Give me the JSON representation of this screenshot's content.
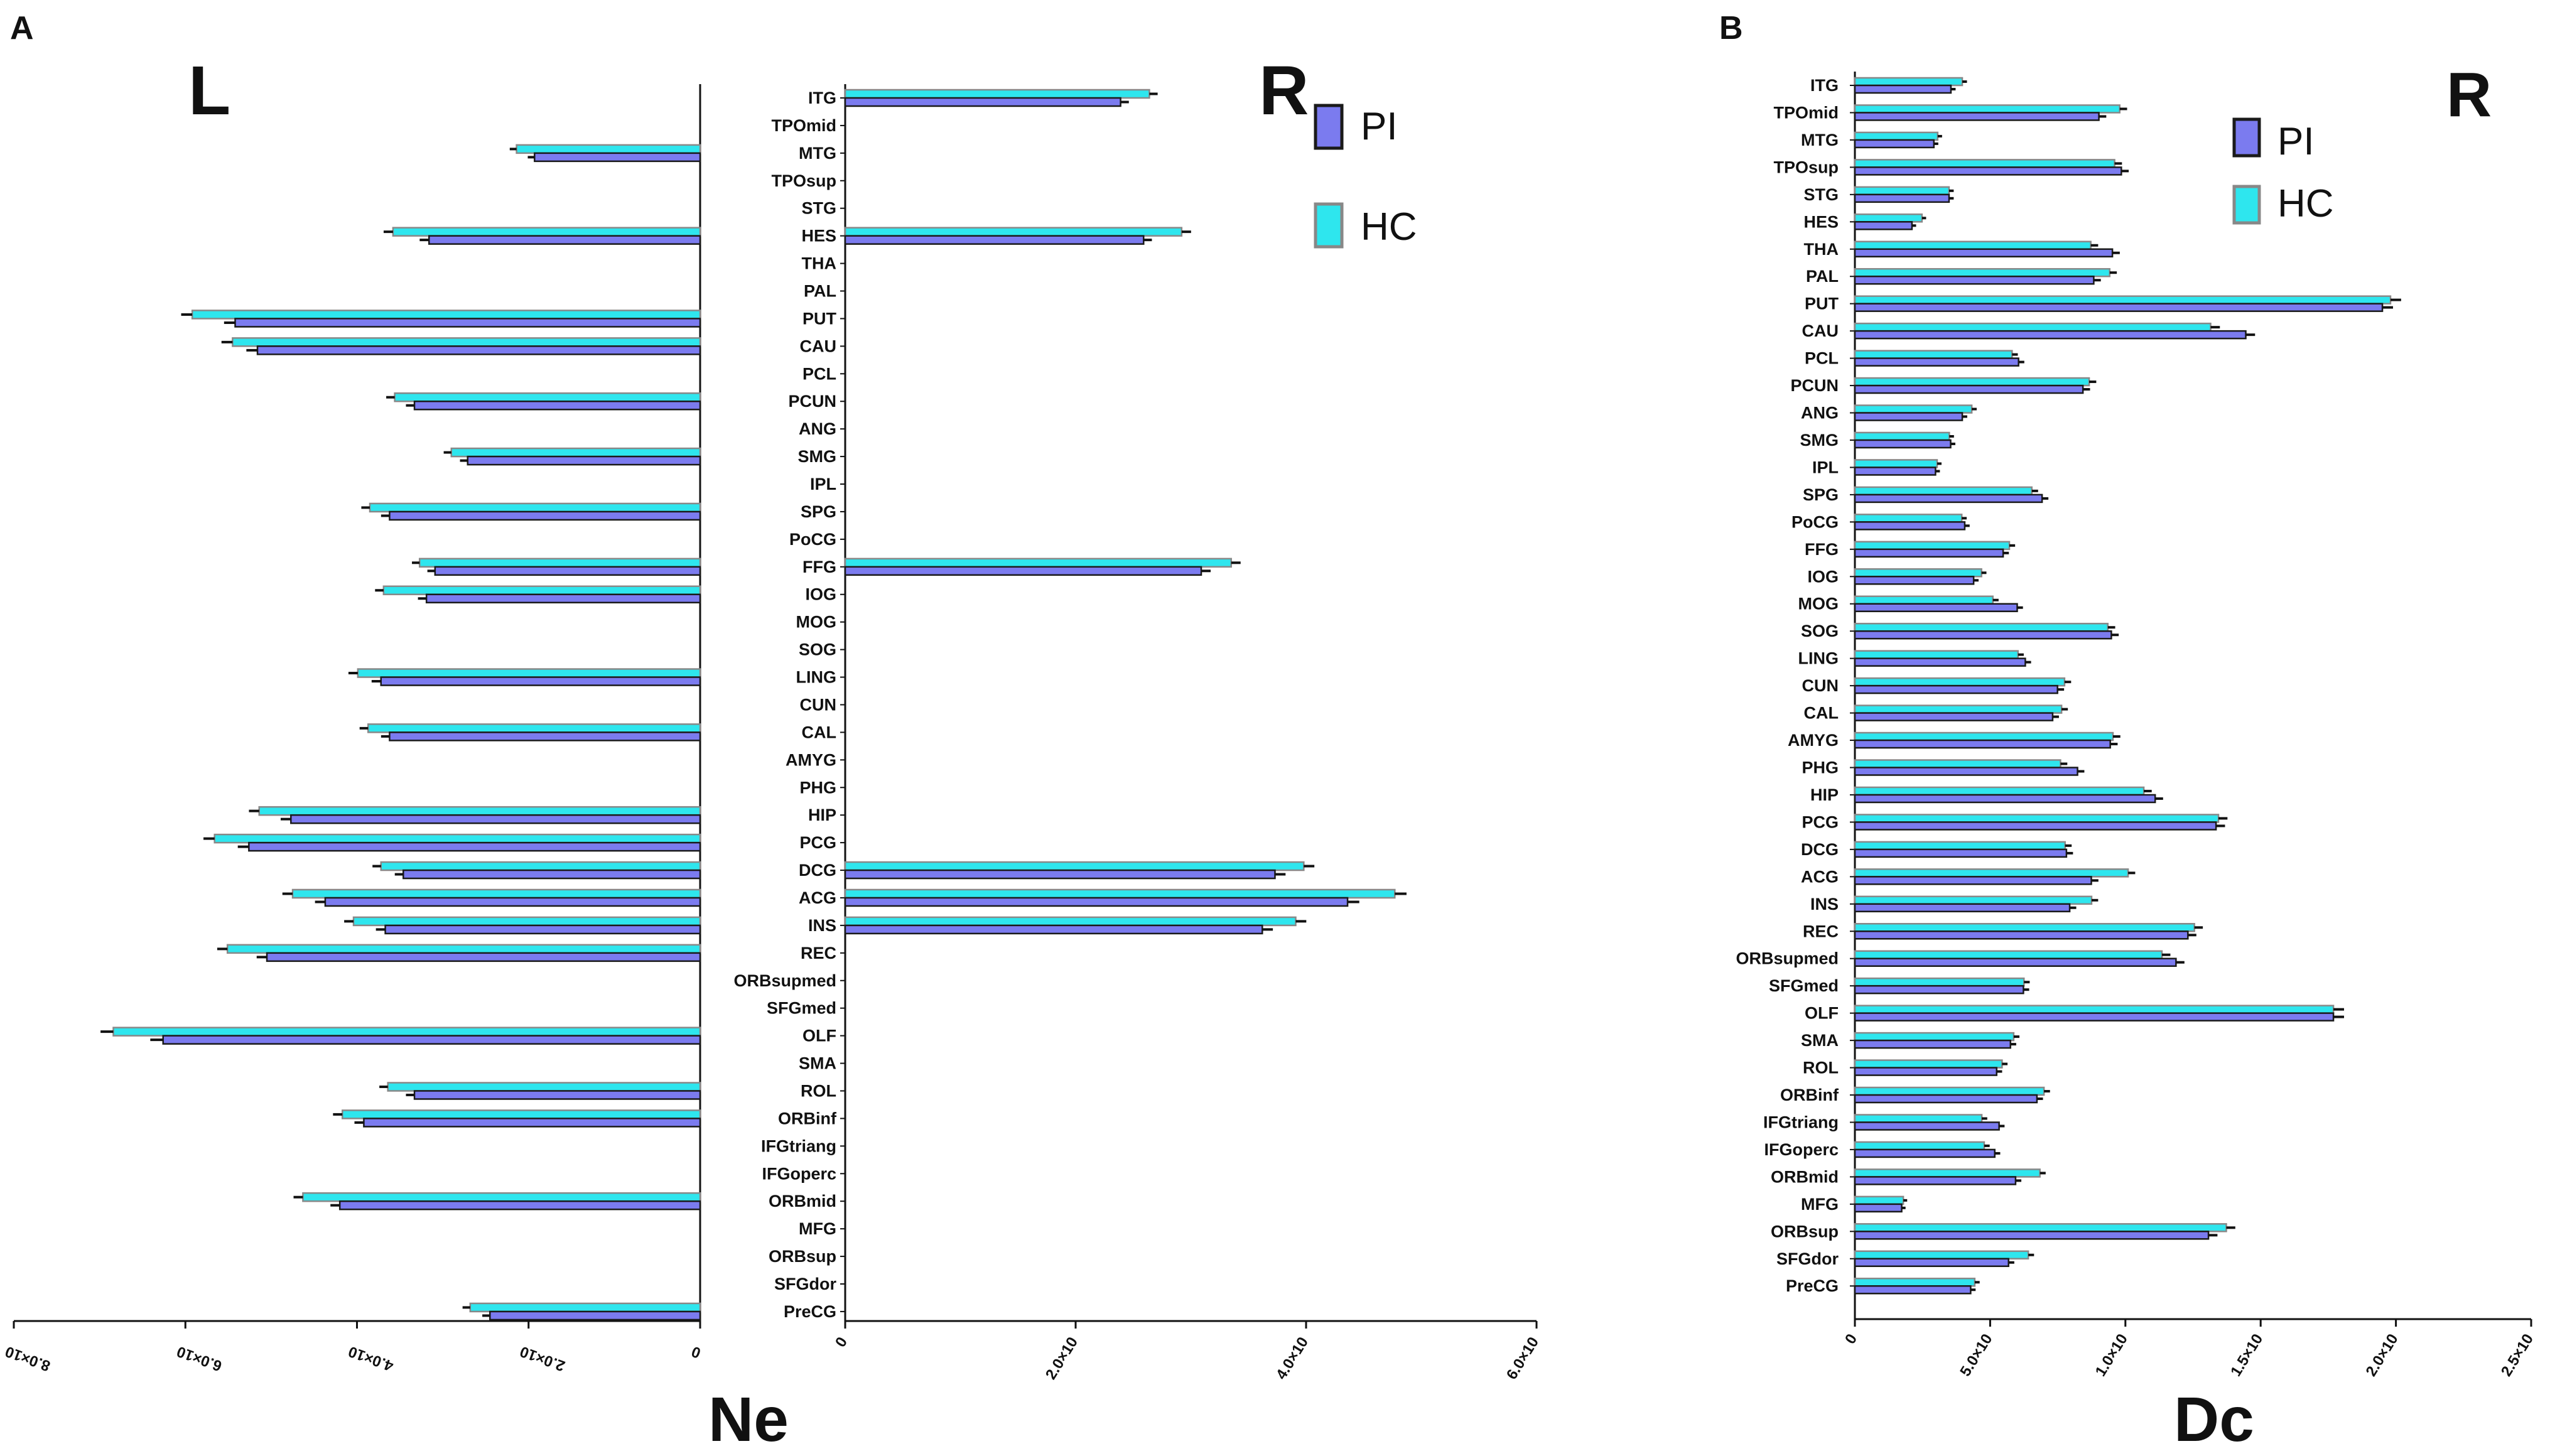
{
  "colors": {
    "pi": "#7b7bef",
    "hc": "#2ee6ee",
    "outline": "#1a1a1a"
  },
  "panels": {
    "a": {
      "letter": "A",
      "side_left": "L",
      "side_right": "R",
      "metric": "Ne"
    },
    "b": {
      "letter": "B",
      "side_right": "R",
      "metric": "Dc"
    }
  },
  "legend": {
    "pi": "PI",
    "hc": "HC"
  },
  "chart_data": [
    {
      "id": "ne_left",
      "type": "bar",
      "orientation": "horizontal",
      "direction": "right-to-left",
      "title": "L",
      "xlabel": "Ne",
      "xlim": [
        0,
        0.008
      ],
      "xticks": [
        "0",
        "2.0×10",
        "4.0×10",
        "6.0×10",
        "8.0×10"
      ],
      "categories": [
        "ITG",
        "TPOmid",
        "MTG",
        "TPOsup",
        "STG",
        "HES",
        "THA",
        "PAL",
        "PUT",
        "CAU",
        "PCL",
        "PCUN",
        "ANG",
        "SMG",
        "IPL",
        "SPG",
        "PoCG",
        "FFG",
        "IOG",
        "MOG",
        "SOG",
        "LING",
        "CUN",
        "CAL",
        "AMYG",
        "PHG",
        "HIP",
        "PCG",
        "DCG",
        "ACG",
        "INS",
        "REC",
        "ORBsupmed",
        "SFGmed",
        "OLF",
        "SMA",
        "ROL",
        "ORBinf",
        "IFGtriang",
        "IFGoperc",
        "ORBmid",
        "MFG",
        "ORBsup",
        "SFGdor",
        "PreCG"
      ],
      "series": [
        {
          "name": "PI",
          "values": [
            0,
            0,
            0.00193,
            0,
            0,
            0.00316,
            0,
            0,
            0.00542,
            0.00516,
            0,
            0.00333,
            0,
            0.00271,
            0,
            0.00362,
            0,
            0.00309,
            0.00319,
            0,
            0,
            0.00372,
            0,
            0.00362,
            0,
            0,
            0.00477,
            0.00526,
            0.00346,
            0.00437,
            0.00367,
            0.00505,
            0,
            0,
            0.00626,
            0,
            0.00333,
            0.00392,
            0,
            0,
            0.0042,
            0,
            0,
            0,
            0.00245
          ],
          "errors": [
            0,
            0,
            5e-05,
            0,
            0,
            8e-05,
            0,
            0,
            0.0001,
            0.0001,
            0,
            7e-05,
            0,
            6e-05,
            0,
            7e-05,
            0,
            6e-05,
            7e-05,
            0,
            0,
            8e-05,
            0,
            7e-05,
            0,
            0,
            9e-05,
            0.0001,
            7e-05,
            9e-05,
            8e-05,
            9e-05,
            0,
            0,
            0.00012,
            0,
            7e-05,
            8e-05,
            0,
            0,
            8e-05,
            0,
            0,
            0,
            6e-05
          ]
        },
        {
          "name": "HC",
          "values": [
            0,
            0,
            0.00214,
            0,
            0,
            0.00358,
            0,
            0,
            0.00592,
            0.00545,
            0,
            0.00356,
            0,
            0.0029,
            0,
            0.00385,
            0,
            0.00327,
            0.00369,
            0,
            0,
            0.00399,
            0,
            0.00387,
            0,
            0,
            0.00514,
            0.00566,
            0.00372,
            0.00475,
            0.00404,
            0.00551,
            0,
            0,
            0.00684,
            0,
            0.00364,
            0.00417,
            0,
            0,
            0.00463,
            0,
            0,
            0,
            0.00268
          ],
          "errors": [
            0,
            0,
            5e-05,
            0,
            0,
            8e-05,
            0,
            0,
            0.0001,
            0.0001,
            0,
            7e-05,
            0,
            6e-05,
            0,
            7e-05,
            0,
            6e-05,
            7e-05,
            0,
            0,
            8e-05,
            0,
            7e-05,
            0,
            0,
            9e-05,
            0.0001,
            7e-05,
            9e-05,
            8e-05,
            9e-05,
            0,
            0,
            0.00012,
            0,
            7e-05,
            8e-05,
            0,
            0,
            8e-05,
            0,
            0,
            0,
            6e-05
          ]
        }
      ]
    },
    {
      "id": "ne_right",
      "type": "bar",
      "orientation": "horizontal",
      "title": "R",
      "xlabel": "Ne",
      "xlim": [
        0,
        0.006
      ],
      "xticks": [
        "0",
        "2.0×10",
        "4.0×10",
        "6.0×10"
      ],
      "categories": [
        "ITG",
        "TPOmid",
        "MTG",
        "TPOsup",
        "STG",
        "HES",
        "THA",
        "PAL",
        "PUT",
        "CAU",
        "PCL",
        "PCUN",
        "ANG",
        "SMG",
        "IPL",
        "SPG",
        "PoCG",
        "FFG",
        "IOG",
        "MOG",
        "SOG",
        "LING",
        "CUN",
        "CAL",
        "AMYG",
        "PHG",
        "HIP",
        "PCG",
        "DCG",
        "ACG",
        "INS",
        "REC",
        "ORBsupmed",
        "SFGmed",
        "OLF",
        "SMA",
        "ROL",
        "ORBinf",
        "IFGtriang",
        "IFGoperc",
        "ORBmid",
        "MFG",
        "ORBsup",
        "SFGdor",
        "PreCG"
      ],
      "series": [
        {
          "name": "PI",
          "values": [
            0.00239,
            0,
            0,
            0,
            0,
            0.00259,
            0,
            0,
            0,
            0,
            0,
            0,
            0,
            0,
            0,
            0,
            0,
            0.00309,
            0,
            0,
            0,
            0,
            0,
            0,
            0,
            0,
            0,
            0,
            0.00373,
            0.00436,
            0.00362,
            0,
            0,
            0,
            0,
            0,
            0,
            0,
            0,
            0,
            0,
            0,
            0,
            0,
            0
          ],
          "errors": [
            5e-05,
            0,
            0,
            0,
            0,
            5e-05,
            0,
            0,
            0,
            0,
            0,
            0,
            0,
            0,
            0,
            0,
            0,
            6e-05,
            0,
            0,
            0,
            0,
            0,
            0,
            0,
            0,
            0,
            0,
            7e-05,
            8e-05,
            7e-05,
            0,
            0,
            0,
            0,
            0,
            0,
            0,
            0,
            0,
            0,
            0,
            0,
            0,
            0
          ]
        },
        {
          "name": "HC",
          "values": [
            0.00264,
            0,
            0,
            0,
            0,
            0.00292,
            0,
            0,
            0,
            0,
            0,
            0,
            0,
            0,
            0,
            0,
            0,
            0.00335,
            0,
            0,
            0,
            0,
            0,
            0,
            0,
            0,
            0,
            0,
            0.00398,
            0.00477,
            0.00391,
            0,
            0,
            0,
            0,
            0,
            0,
            0,
            0,
            0,
            0,
            0,
            0,
            0,
            0
          ],
          "errors": [
            5e-05,
            0,
            0,
            0,
            0,
            6e-05,
            0,
            0,
            0,
            0,
            0,
            0,
            0,
            0,
            0,
            0,
            0,
            6e-05,
            0,
            0,
            0,
            0,
            0,
            0,
            0,
            0,
            0,
            0,
            7e-05,
            8e-05,
            7e-05,
            0,
            0,
            0,
            0,
            0,
            0,
            0,
            0,
            0,
            0,
            0,
            0,
            0,
            0
          ]
        }
      ]
    },
    {
      "id": "dc_right",
      "type": "bar",
      "orientation": "horizontal",
      "title": "R",
      "xlabel": "Dc",
      "xlim": [
        0,
        0.00025
      ],
      "xticks": [
        "0",
        "5.0×10",
        "1.0×10",
        "1.5×10",
        "2.0×10",
        "2.5×10"
      ],
      "categories": [
        "ITG",
        "TPOmid",
        "MTG",
        "TPOsup",
        "STG",
        "HES",
        "THA",
        "PAL",
        "PUT",
        "CAU",
        "PCL",
        "PCUN",
        "ANG",
        "SMG",
        "IPL",
        "SPG",
        "PoCG",
        "FFG",
        "IOG",
        "MOG",
        "SOG",
        "LING",
        "CUN",
        "CAL",
        "AMYG",
        "PHG",
        "HIP",
        "PCG",
        "DCG",
        "ACG",
        "INS",
        "REC",
        "ORBsupmed",
        "SFGmed",
        "OLF",
        "SMA",
        "ROL",
        "ORBinf",
        "IFGtriang",
        "IFGoperc",
        "ORBmid",
        "MFG",
        "ORBsup",
        "SFGdor",
        "PreCG"
      ],
      "series": [
        {
          "name": "PI",
          "values": [
            3.55e-05,
            9.02e-05,
            2.92e-05,
            9.85e-05,
            3.48e-05,
            2.11e-05,
            9.52e-05,
            8.83e-05,
            0.000195,
            0.0001445,
            6.05e-05,
            8.43e-05,
            3.97e-05,
            3.54e-05,
            2.98e-05,
            6.92e-05,
            4.06e-05,
            5.48e-05,
            4.39e-05,
            6e-05,
            9.48e-05,
            6.3e-05,
            7.49e-05,
            7.31e-05,
            9.44e-05,
            8.23e-05,
            0.000111,
            0.0001335,
            7.82e-05,
            8.74e-05,
            7.94e-05,
            0.0001231,
            0.0001187,
            6.23e-05,
            0.0001769,
            5.75e-05,
            5.24e-05,
            6.73e-05,
            5.33e-05,
            5.17e-05,
            5.94e-05,
            1.73e-05,
            0.0001307,
            5.68e-05,
            4.28e-05
          ],
          "errors": [
            8e-07,
            1.8e-06,
            7e-07,
            1.8e-06,
            8e-07,
            6e-07,
            1.8e-06,
            1.7e-06,
            3e-06,
            2.5e-06,
            1.2e-06,
            1.7e-06,
            9e-07,
            8e-07,
            7e-07,
            1.4e-06,
            9e-07,
            1.2e-06,
            9e-07,
            1.2e-06,
            1.8e-06,
            1.2e-06,
            1.5e-06,
            1.4e-06,
            1.8e-06,
            1.6e-06,
            2e-06,
            2.4e-06,
            1.5e-06,
            1.7e-06,
            1.5e-06,
            2.2e-06,
            2.2e-06,
            1.2e-06,
            3e-06,
            1.2e-06,
            1.1e-06,
            1.3e-06,
            1.1e-06,
            1.1e-06,
            1.2e-06,
            5e-07,
            2.4e-06,
            1.2e-06,
            9e-07
          ]
        },
        {
          "name": "HC",
          "values": [
            3.97e-05,
            9.79e-05,
            3.06e-05,
            9.6e-05,
            3.48e-05,
            2.48e-05,
            8.72e-05,
            9.42e-05,
            0.000198,
            0.0001315,
            5.81e-05,
            8.66e-05,
            4.32e-05,
            3.49e-05,
            3.04e-05,
            6.54e-05,
            3.95e-05,
            5.71e-05,
            4.68e-05,
            5.1e-05,
            9.35e-05,
            6.03e-05,
            7.75e-05,
            7.64e-05,
            9.54e-05,
            7.6e-05,
            0.0001068,
            0.0001344,
            7.77e-05,
            0.000101,
            8.75e-05,
            0.0001255,
            0.0001135,
            6.25e-05,
            0.0001769,
            5.87e-05,
            5.44e-05,
            6.99e-05,
            4.69e-05,
            4.78e-05,
            6.84e-05,
            1.79e-05,
            0.0001373,
            6.41e-05,
            4.43e-05
          ],
          "errors": [
            8e-07,
            1.8e-06,
            7e-07,
            1.8e-06,
            8e-07,
            6e-07,
            1.8e-06,
            1.7e-06,
            3e-06,
            2.5e-06,
            1.2e-06,
            1.7e-06,
            9e-07,
            8e-07,
            7e-07,
            1.4e-06,
            9e-07,
            1.2e-06,
            9e-07,
            1.2e-06,
            1.8e-06,
            1.2e-06,
            1.5e-06,
            1.4e-06,
            1.8e-06,
            1.6e-06,
            2e-06,
            2.4e-06,
            1.5e-06,
            1.7e-06,
            1.5e-06,
            2.2e-06,
            2.2e-06,
            1.2e-06,
            3e-06,
            1.2e-06,
            1.1e-06,
            1.3e-06,
            1.1e-06,
            1.1e-06,
            1.2e-06,
            5e-07,
            2.4e-06,
            1.2e-06,
            9e-07
          ]
        }
      ]
    }
  ]
}
